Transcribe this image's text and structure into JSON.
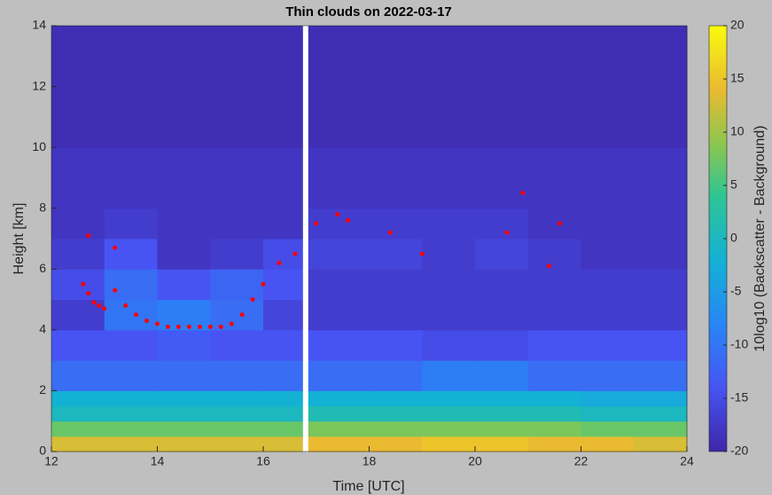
{
  "chart_data": {
    "type": "heatmap",
    "title": "Thin clouds on 2022-03-17",
    "x_label": "Time [UTC]",
    "y_label": "Height [km]",
    "colorbar_label": "10log10 (Backscatter - Background)",
    "colormap": "parula",
    "xlim": [
      12,
      24
    ],
    "xticks": [
      12,
      14,
      16,
      18,
      20,
      22,
      24
    ],
    "ylim": [
      0,
      14
    ],
    "yticks": [
      0,
      2,
      4,
      6,
      8,
      10,
      12,
      14
    ],
    "clim": [
      -20,
      20
    ],
    "cticks": [
      -20,
      -15,
      -10,
      -5,
      0,
      5,
      10,
      15,
      20
    ],
    "x_edges": [
      12,
      13,
      14,
      15,
      16,
      16.75,
      16.85,
      17,
      18,
      19,
      20,
      21,
      22,
      23,
      24
    ],
    "y_edges": [
      0,
      0.5,
      1,
      1.5,
      2,
      3,
      4,
      5,
      6,
      7,
      8,
      10,
      14
    ],
    "z": [
      [
        13,
        13,
        13,
        13,
        13,
        null,
        14,
        14,
        14,
        15,
        15,
        14,
        14,
        13
      ],
      [
        7,
        7,
        7,
        7,
        7,
        null,
        8,
        8,
        8,
        8,
        8,
        8,
        7,
        7
      ],
      [
        0,
        0,
        0,
        0,
        0,
        null,
        1,
        1,
        1,
        1,
        1,
        1,
        0,
        0
      ],
      [
        -2,
        -2,
        -2,
        -2,
        -2,
        null,
        -2,
        -2,
        -2,
        -2,
        -2,
        -2,
        -3,
        -3
      ],
      [
        -11,
        -11,
        -11,
        -11,
        -11,
        null,
        -11,
        -11,
        -11,
        -9,
        -9,
        -11,
        -11,
        -11
      ],
      [
        -14,
        -14,
        -13,
        -14,
        -14,
        null,
        -14,
        -14,
        -14,
        -15,
        -15,
        -14,
        -14,
        -14
      ],
      [
        -17,
        -10,
        -9,
        -11,
        -16,
        null,
        -17,
        -17,
        -17,
        -17,
        -17,
        -17,
        -17,
        -17
      ],
      [
        -15,
        -11,
        -14,
        -12,
        -14,
        null,
        -17,
        -17,
        -17,
        -17,
        -17,
        -17,
        -17,
        -17
      ],
      [
        -17,
        -14,
        -18,
        -17,
        -15,
        null,
        -16,
        -16,
        -16,
        -17,
        -16,
        -17,
        -18,
        -18
      ],
      [
        -18,
        -17,
        -18,
        -18,
        -18,
        null,
        -17,
        -17,
        -17,
        -17,
        -17,
        -18,
        -18,
        -18
      ],
      [
        -18,
        -18,
        -18,
        -18,
        -18,
        null,
        -18,
        -18,
        -18,
        -18,
        -18,
        -18,
        -18,
        -18
      ],
      [
        -19,
        -19,
        -19,
        -19,
        -19,
        null,
        -19,
        -19,
        -19,
        -19,
        -19,
        -19,
        -19,
        -19
      ]
    ],
    "points": {
      "color": "#ff0000",
      "x": [
        12.6,
        12.7,
        12.8,
        12.9,
        13.0,
        13.2,
        13.4,
        13.6,
        13.8,
        14.0,
        14.2,
        14.4,
        14.6,
        14.8,
        15.0,
        15.2,
        15.4,
        15.6,
        15.8,
        16.0,
        16.3,
        16.6,
        17.0,
        17.4,
        17.6,
        18.4,
        19.0,
        20.6,
        21.4,
        21.6,
        20.9,
        12.7,
        13.2
      ],
      "y": [
        5.5,
        5.2,
        4.9,
        4.8,
        4.7,
        5.3,
        4.8,
        4.5,
        4.3,
        4.2,
        4.1,
        4.1,
        4.1,
        4.1,
        4.1,
        4.1,
        4.2,
        4.5,
        5.0,
        5.5,
        6.2,
        6.5,
        7.5,
        7.8,
        7.6,
        7.2,
        6.5,
        7.2,
        6.1,
        7.5,
        8.5,
        7.1,
        6.7
      ]
    }
  }
}
